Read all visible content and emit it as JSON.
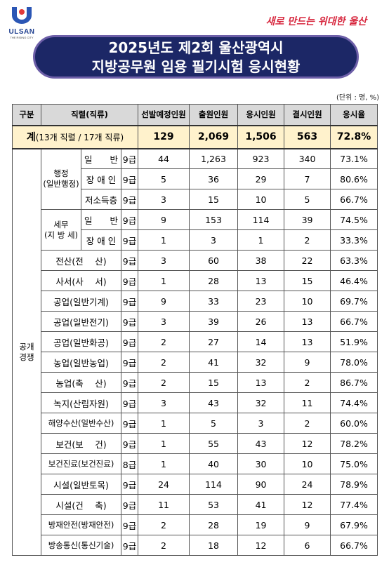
{
  "header": {
    "logo": "ULSAN",
    "logo_sub": "THE RISING CITY",
    "slogan": "새로 만드는 위대한 울산",
    "title_line1": "2025년도 제2회 울산광역시",
    "title_line2": "지방공무원 임용 필기시험 응시현황",
    "unit": "(단위 : 명, %)"
  },
  "table": {
    "columns": [
      "구분",
      "직렬(직류)",
      "선발예정인원",
      "출원인원",
      "응시인원",
      "결시인원",
      "응시율"
    ],
    "total": {
      "label": "계",
      "label_detail": "(13개 직렬 / 17개 직류)",
      "values": [
        "129",
        "2,069",
        "1,506",
        "563",
        "72.8%"
      ]
    },
    "group": [
      "공개",
      "경쟁"
    ],
    "entries": [
      {
        "label": [
          "행정",
          "(일반행정)"
        ],
        "rows": [
          {
            "name": "일　　반",
            "grade": "9급",
            "values": [
              "44",
              "1,263",
              "923",
              "340",
              "73.1%"
            ]
          },
          {
            "name": "장 애 인",
            "grade": "9급",
            "values": [
              "5",
              "36",
              "29",
              "7",
              "80.6%"
            ]
          },
          {
            "name": "저소득층",
            "grade": "9급",
            "values": [
              "3",
              "15",
              "10",
              "5",
              "66.7%"
            ]
          }
        ]
      },
      {
        "label": [
          "세무",
          "(지 방 세)"
        ],
        "rows": [
          {
            "name": "일　　반",
            "grade": "9급",
            "values": [
              "9",
              "153",
              "114",
              "39",
              "74.5%"
            ]
          },
          {
            "name": "장 애 인",
            "grade": "9급",
            "values": [
              "1",
              "3",
              "1",
              "2",
              "33.3%"
            ]
          }
        ]
      },
      {
        "name": "전산(전　 산)",
        "grade": "9급",
        "values": [
          "3",
          "60",
          "38",
          "22",
          "63.3%"
        ]
      },
      {
        "name": "사서(사　 서)",
        "grade": "9급",
        "values": [
          "1",
          "28",
          "13",
          "15",
          "46.4%"
        ]
      },
      {
        "name": "공업(일반기계)",
        "grade": "9급",
        "values": [
          "9",
          "33",
          "23",
          "10",
          "69.7%"
        ]
      },
      {
        "name": "공업(일반전기)",
        "grade": "9급",
        "values": [
          "3",
          "39",
          "26",
          "13",
          "66.7%"
        ]
      },
      {
        "name": "공업(일반화공)",
        "grade": "9급",
        "values": [
          "2",
          "27",
          "14",
          "13",
          "51.9%"
        ]
      },
      {
        "name": "농업(일반농업)",
        "grade": "9급",
        "values": [
          "2",
          "41",
          "32",
          "9",
          "78.0%"
        ]
      },
      {
        "name": "농업(축　 산)",
        "grade": "9급",
        "values": [
          "2",
          "15",
          "13",
          "2",
          "86.7%"
        ]
      },
      {
        "name": "녹지(산림자원)",
        "grade": "9급",
        "values": [
          "3",
          "43",
          "32",
          "11",
          "74.4%"
        ]
      },
      {
        "name": "해양수산(일반수산)",
        "grade": "9급",
        "values": [
          "1",
          "5",
          "3",
          "2",
          "60.0%"
        ]
      },
      {
        "name": "보건(보　 건)",
        "grade": "9급",
        "values": [
          "1",
          "55",
          "43",
          "12",
          "78.2%"
        ]
      },
      {
        "name": "보건진료(보건진료)",
        "grade": "8급",
        "values": [
          "1",
          "40",
          "30",
          "10",
          "75.0%"
        ]
      },
      {
        "name": "시설(일반토목)",
        "grade": "9급",
        "values": [
          "24",
          "114",
          "90",
          "24",
          "78.9%"
        ]
      },
      {
        "name": "시설(건　 축)",
        "grade": "9급",
        "values": [
          "11",
          "53",
          "41",
          "12",
          "77.4%"
        ]
      },
      {
        "name": "방재안전(방재안전)",
        "grade": "9급",
        "values": [
          "2",
          "28",
          "19",
          "9",
          "67.9%"
        ]
      },
      {
        "name": "방송통신(통신기술)",
        "grade": "9급",
        "values": [
          "2",
          "18",
          "12",
          "6",
          "66.7%"
        ]
      }
    ]
  }
}
